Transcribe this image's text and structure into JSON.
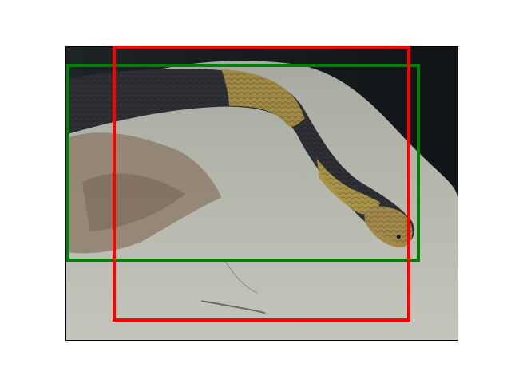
{
  "scene": {
    "subject": "snake",
    "background_color": "#ffffff",
    "photo_border_color": "#000000"
  },
  "boxes": [
    {
      "label": "",
      "color": "#008000"
    },
    {
      "label": "",
      "color": "#ff0000"
    }
  ]
}
